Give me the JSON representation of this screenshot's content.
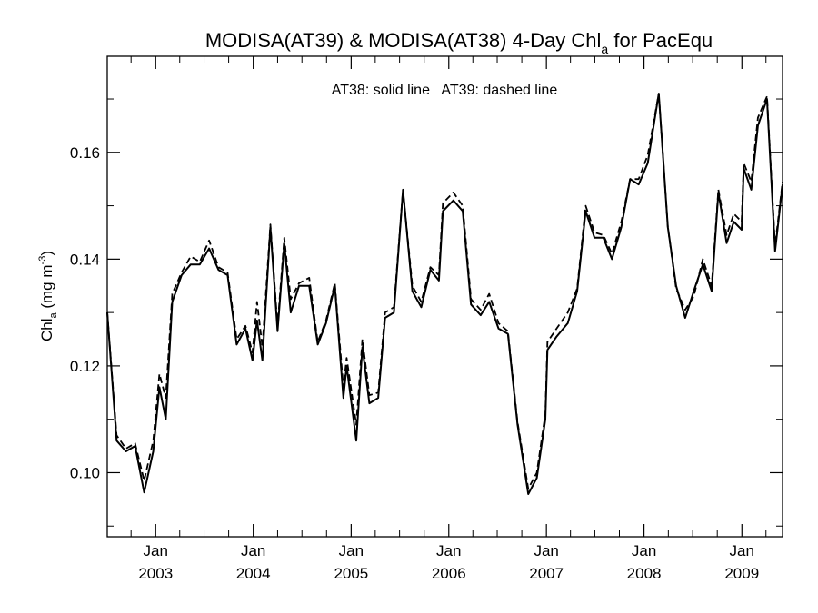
{
  "chart_data": {
    "type": "line",
    "title": {
      "prefix": "MODISA(AT39) & MODISA(AT38) 4-Day Chl",
      "subscript": "a",
      "suffix": " for PacEqu"
    },
    "annotation": "AT38: solid line   AT39: dashed line",
    "ylabel": {
      "prefix": "Chl",
      "subscript": "a",
      "middle": " (mg m",
      "superscript": "-3",
      "suffix": ")"
    },
    "xlim": [
      "2002-07-04",
      "2009-06-02"
    ],
    "ylim": [
      0.088,
      0.178
    ],
    "grid": false,
    "x_ticks": [
      {
        "date": "2003-01-01",
        "month": "Jan",
        "year": "2003"
      },
      {
        "date": "2004-01-01",
        "month": "Jan",
        "year": "2004"
      },
      {
        "date": "2005-01-01",
        "month": "Jan",
        "year": "2005"
      },
      {
        "date": "2006-01-01",
        "month": "Jan",
        "year": "2006"
      },
      {
        "date": "2007-01-01",
        "month": "Jan",
        "year": "2007"
      },
      {
        "date": "2008-01-01",
        "month": "Jan",
        "year": "2008"
      },
      {
        "date": "2009-01-01",
        "month": "Jan",
        "year": "2009"
      }
    ],
    "y_ticks": [
      {
        "value": 0.1,
        "label": "0.10"
      },
      {
        "value": 0.12,
        "label": "0.12"
      },
      {
        "value": 0.14,
        "label": "0.14"
      },
      {
        "value": 0.16,
        "label": "0.16"
      }
    ],
    "series": [
      {
        "name": "AT38",
        "style": "solid",
        "color": "#000000",
        "points": [
          [
            "2002-07-04",
            0.13
          ],
          [
            "2002-08-08",
            0.106
          ],
          [
            "2002-09-12",
            0.104
          ],
          [
            "2002-10-16",
            0.105
          ],
          [
            "2002-11-19",
            0.0963
          ],
          [
            "2002-12-23",
            0.104
          ],
          [
            "2003-01-15",
            0.116
          ],
          [
            "2003-02-08",
            0.11
          ],
          [
            "2003-03-04",
            0.132
          ],
          [
            "2003-04-08",
            0.137
          ],
          [
            "2003-05-12",
            0.139
          ],
          [
            "2003-06-15",
            0.139
          ],
          [
            "2003-07-20",
            0.142
          ],
          [
            "2003-08-24",
            0.138
          ],
          [
            "2003-09-27",
            0.137
          ],
          [
            "2003-10-31",
            0.124
          ],
          [
            "2003-12-03",
            0.127
          ],
          [
            "2003-12-29",
            0.121
          ],
          [
            "2004-01-15",
            0.1285
          ],
          [
            "2004-02-04",
            0.121
          ],
          [
            "2004-03-05",
            0.146
          ],
          [
            "2004-04-01",
            0.1265
          ],
          [
            "2004-04-26",
            0.143
          ],
          [
            "2004-05-20",
            0.13
          ],
          [
            "2004-06-20",
            0.135
          ],
          [
            "2004-07-28",
            0.135
          ],
          [
            "2004-08-29",
            0.124
          ],
          [
            "2004-09-29",
            0.128
          ],
          [
            "2004-11-01",
            0.135
          ],
          [
            "2004-12-03",
            0.114
          ],
          [
            "2004-12-15",
            0.12
          ],
          [
            "2005-01-20",
            0.106
          ],
          [
            "2005-02-12",
            0.1235
          ],
          [
            "2005-03-10",
            0.113
          ],
          [
            "2005-04-12",
            0.114
          ],
          [
            "2005-05-08",
            0.129
          ],
          [
            "2005-06-10",
            0.13
          ],
          [
            "2005-07-14",
            0.153
          ],
          [
            "2005-08-18",
            0.134
          ],
          [
            "2005-09-20",
            0.131
          ],
          [
            "2005-10-24",
            0.138
          ],
          [
            "2005-11-25",
            0.136
          ],
          [
            "2005-12-10",
            0.149
          ],
          [
            "2006-01-18",
            0.151
          ],
          [
            "2006-02-22",
            0.149
          ],
          [
            "2006-03-25",
            0.1315
          ],
          [
            "2006-04-30",
            0.1295
          ],
          [
            "2006-06-01",
            0.132
          ],
          [
            "2006-07-06",
            0.127
          ],
          [
            "2006-08-10",
            0.126
          ],
          [
            "2006-09-15",
            0.109
          ],
          [
            "2006-10-25",
            0.096
          ],
          [
            "2006-11-26",
            0.099
          ],
          [
            "2006-12-28",
            0.11
          ],
          [
            "2007-01-05",
            0.123
          ],
          [
            "2007-02-08",
            0.1255
          ],
          [
            "2007-03-22",
            0.128
          ],
          [
            "2007-04-26",
            0.134
          ],
          [
            "2007-05-28",
            0.149
          ],
          [
            "2007-06-30",
            0.144
          ],
          [
            "2007-08-02",
            0.144
          ],
          [
            "2007-09-03",
            0.14
          ],
          [
            "2007-10-08",
            0.146
          ],
          [
            "2007-11-10",
            0.155
          ],
          [
            "2007-12-12",
            0.154
          ],
          [
            "2008-01-15",
            0.158
          ],
          [
            "2008-02-25",
            0.171
          ],
          [
            "2008-03-30",
            0.146
          ],
          [
            "2008-04-30",
            0.135
          ],
          [
            "2008-06-03",
            0.129
          ],
          [
            "2008-07-05",
            0.134
          ],
          [
            "2008-08-08",
            0.139
          ],
          [
            "2008-09-10",
            0.134
          ],
          [
            "2008-10-05",
            0.1525
          ],
          [
            "2008-11-05",
            0.143
          ],
          [
            "2008-12-02",
            0.147
          ],
          [
            "2008-12-31",
            0.1455
          ],
          [
            "2009-01-08",
            0.157
          ],
          [
            "2009-02-05",
            0.153
          ],
          [
            "2009-03-02",
            0.165
          ],
          [
            "2009-04-05",
            0.17
          ],
          [
            "2009-05-05",
            0.1415
          ],
          [
            "2009-06-02",
            0.154
          ]
        ]
      },
      {
        "name": "AT39",
        "style": "dashed",
        "color": "#000000",
        "points": [
          [
            "2002-07-04",
            0.13
          ],
          [
            "2002-08-08",
            0.107
          ],
          [
            "2002-09-12",
            0.1045
          ],
          [
            "2002-10-16",
            0.1055
          ],
          [
            "2002-11-19",
            0.0985
          ],
          [
            "2002-12-23",
            0.106
          ],
          [
            "2003-01-15",
            0.1185
          ],
          [
            "2003-02-08",
            0.114
          ],
          [
            "2003-03-04",
            0.1335
          ],
          [
            "2003-04-08",
            0.1375
          ],
          [
            "2003-05-12",
            0.1405
          ],
          [
            "2003-06-15",
            0.1395
          ],
          [
            "2003-07-20",
            0.1435
          ],
          [
            "2003-08-24",
            0.1385
          ],
          [
            "2003-09-27",
            0.1375
          ],
          [
            "2003-10-31",
            0.125
          ],
          [
            "2003-12-03",
            0.1275
          ],
          [
            "2003-12-29",
            0.1225
          ],
          [
            "2004-01-15",
            0.132
          ],
          [
            "2004-02-04",
            0.1235
          ],
          [
            "2004-03-05",
            0.1465
          ],
          [
            "2004-04-01",
            0.1275
          ],
          [
            "2004-04-26",
            0.144
          ],
          [
            "2004-05-20",
            0.1325
          ],
          [
            "2004-06-20",
            0.1355
          ],
          [
            "2004-07-28",
            0.1365
          ],
          [
            "2004-08-29",
            0.1245
          ],
          [
            "2004-09-29",
            0.1285
          ],
          [
            "2004-11-01",
            0.1355
          ],
          [
            "2004-12-03",
            0.116
          ],
          [
            "2004-12-15",
            0.1215
          ],
          [
            "2005-01-20",
            0.109
          ],
          [
            "2005-02-12",
            0.125
          ],
          [
            "2005-03-10",
            0.1145
          ],
          [
            "2005-04-12",
            0.115
          ],
          [
            "2005-05-08",
            0.13
          ],
          [
            "2005-06-10",
            0.131
          ],
          [
            "2005-07-14",
            0.153
          ],
          [
            "2005-08-18",
            0.135
          ],
          [
            "2005-09-20",
            0.132
          ],
          [
            "2005-10-24",
            0.1385
          ],
          [
            "2005-11-25",
            0.137
          ],
          [
            "2005-12-10",
            0.1505
          ],
          [
            "2006-01-18",
            0.1525
          ],
          [
            "2006-02-22",
            0.15
          ],
          [
            "2006-03-25",
            0.1325
          ],
          [
            "2006-04-30",
            0.1305
          ],
          [
            "2006-06-01",
            0.1335
          ],
          [
            "2006-07-06",
            0.128
          ],
          [
            "2006-08-10",
            0.1265
          ],
          [
            "2006-09-15",
            0.1095
          ],
          [
            "2006-10-25",
            0.097
          ],
          [
            "2006-11-26",
            0.1
          ],
          [
            "2006-12-28",
            0.111
          ],
          [
            "2007-01-05",
            0.1245
          ],
          [
            "2007-02-08",
            0.127
          ],
          [
            "2007-03-22",
            0.13
          ],
          [
            "2007-04-26",
            0.1345
          ],
          [
            "2007-05-28",
            0.15
          ],
          [
            "2007-06-30",
            0.145
          ],
          [
            "2007-08-02",
            0.1445
          ],
          [
            "2007-09-03",
            0.141
          ],
          [
            "2007-10-08",
            0.147
          ],
          [
            "2007-11-10",
            0.155
          ],
          [
            "2007-12-12",
            0.155
          ],
          [
            "2008-01-15",
            0.1595
          ],
          [
            "2008-02-25",
            0.171
          ],
          [
            "2008-03-30",
            0.146
          ],
          [
            "2008-04-30",
            0.1345
          ],
          [
            "2008-06-03",
            0.1305
          ],
          [
            "2008-07-05",
            0.133
          ],
          [
            "2008-08-08",
            0.14
          ],
          [
            "2008-09-10",
            0.135
          ],
          [
            "2008-10-05",
            0.153
          ],
          [
            "2008-11-05",
            0.1445
          ],
          [
            "2008-12-02",
            0.1485
          ],
          [
            "2008-12-31",
            0.147
          ],
          [
            "2009-01-08",
            0.158
          ],
          [
            "2009-02-05",
            0.1545
          ],
          [
            "2009-03-02",
            0.1665
          ],
          [
            "2009-04-05",
            0.1705
          ],
          [
            "2009-05-05",
            0.1425
          ],
          [
            "2009-06-02",
            0.1545
          ]
        ]
      }
    ]
  }
}
